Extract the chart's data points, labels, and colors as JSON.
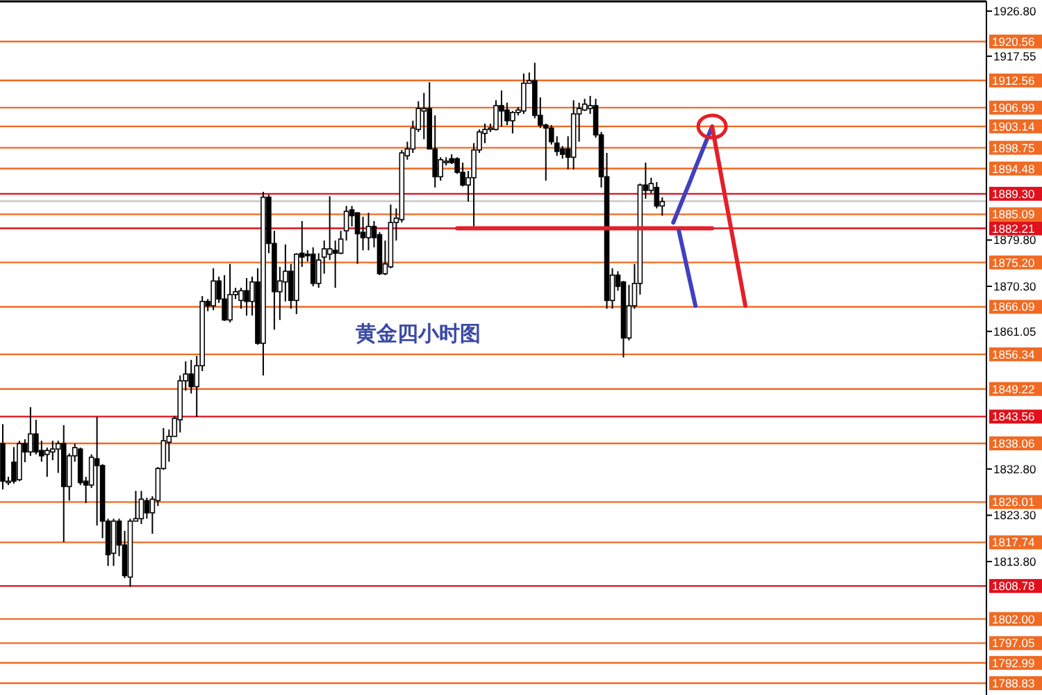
{
  "chart_data": {
    "type": "candlestick",
    "title": "黄金四小时图",
    "tick_labels": "y",
    "ylim": [
      1786.4,
      1928.8
    ],
    "yticks": [
      {
        "value": 1926.8,
        "label": "1926.80"
      },
      {
        "value": 1917.55,
        "label": "1917.55"
      },
      {
        "value": 1879.8,
        "label": "1879.80"
      },
      {
        "value": 1870.3,
        "label": "1870.30"
      },
      {
        "value": 1861.05,
        "label": "1861.05"
      },
      {
        "value": 1832.8,
        "label": "1832.80"
      },
      {
        "value": 1823.3,
        "label": "1823.30"
      },
      {
        "value": 1813.8,
        "label": "1813.80"
      }
    ],
    "categories": [
      null,
      null,
      null,
      null,
      null,
      null,
      null,
      null,
      null,
      null,
      null,
      null,
      null,
      null,
      null,
      null,
      null,
      null,
      null,
      null,
      null,
      null,
      null,
      null,
      null,
      null,
      null,
      null,
      null,
      null,
      null,
      null,
      null,
      null,
      null,
      null,
      null,
      null,
      null,
      null,
      null,
      null,
      null,
      null,
      null,
      null,
      null,
      null,
      null,
      null,
      null,
      null,
      null,
      null,
      null,
      null,
      null,
      null,
      null,
      null,
      null,
      null,
      null,
      null,
      null,
      null,
      null,
      null,
      null,
      null,
      null,
      null,
      null,
      null,
      null,
      null,
      null,
      null,
      null,
      null,
      null,
      null,
      null,
      null,
      null,
      null,
      null,
      null,
      null,
      null,
      null,
      null,
      null,
      null,
      null,
      null,
      null,
      null,
      null,
      null,
      null,
      null,
      null,
      null,
      null,
      null,
      null,
      null,
      null,
      null,
      null,
      null,
      null,
      null,
      null,
      null,
      null,
      null,
      null,
      null,
      null,
      null,
      null,
      null,
      null,
      null,
      null,
      null,
      null,
      null,
      null,
      null,
      null,
      null,
      null,
      null,
      null,
      null,
      null,
      null,
      null,
      null,
      null,
      null,
      null,
      null,
      null,
      null,
      null,
      null,
      null,
      null,
      null,
      null,
      null,
      null,
      null,
      null,
      null,
      null,
      null,
      null,
      null,
      null,
      null,
      null,
      null,
      null,
      null,
      null,
      null,
      null,
      null,
      null,
      null,
      null,
      null,
      null
    ],
    "ohlc": [
      [
        1838.0,
        1842.0,
        1828.6,
        1830.3
      ],
      [
        1830.0,
        1831.2,
        1829.5,
        1830.3
      ],
      [
        1834.2,
        1837.3,
        1829.8,
        1830.3
      ],
      [
        1830.6,
        1838.6,
        1830.3,
        1838.0
      ],
      [
        1838.0,
        1838.9,
        1834.2,
        1836.3
      ],
      [
        1836.3,
        1845.5,
        1835.5,
        1840.0
      ],
      [
        1840.0,
        1842.9,
        1835.8,
        1836.3
      ],
      [
        1836.6,
        1838.6,
        1834.3,
        1835.5
      ],
      [
        1835.8,
        1837.2,
        1831.2,
        1836.6
      ],
      [
        1836.3,
        1838.6,
        1834.6,
        1836.9
      ],
      [
        1836.9,
        1838.6,
        1832.0,
        1838.0
      ],
      [
        1838.0,
        1841.8,
        1817.8,
        1829.2
      ],
      [
        1829.2,
        1836.0,
        1826.3,
        1835.5
      ],
      [
        1835.5,
        1838.0,
        1834.3,
        1837.2
      ],
      [
        1836.9,
        1837.2,
        1829.5,
        1830.0
      ],
      [
        1830.3,
        1831.2,
        1825.8,
        1829.5
      ],
      [
        1829.5,
        1835.8,
        1828.9,
        1835.2
      ],
      [
        1834.9,
        1843.5,
        1821.2,
        1833.5
      ],
      [
        1833.5,
        1833.8,
        1818.6,
        1822.1
      ],
      [
        1822.1,
        1822.6,
        1812.9,
        1815.2
      ],
      [
        1815.5,
        1822.6,
        1812.9,
        1822.1
      ],
      [
        1822.1,
        1822.6,
        1814.9,
        1817.2
      ],
      [
        1817.2,
        1820.1,
        1810.4,
        1810.9
      ],
      [
        1810.6,
        1822.6,
        1808.6,
        1822.1
      ],
      [
        1822.1,
        1828.3,
        1822.1,
        1822.6
      ],
      [
        1822.6,
        1828.3,
        1821.5,
        1826.6
      ],
      [
        1826.3,
        1826.9,
        1822.6,
        1823.8
      ],
      [
        1823.8,
        1827.2,
        1819.5,
        1826.6
      ],
      [
        1826.3,
        1833.2,
        1825.2,
        1832.9
      ],
      [
        1832.9,
        1841.2,
        1832.6,
        1838.6
      ],
      [
        1838.3,
        1840.9,
        1834.3,
        1839.5
      ],
      [
        1839.5,
        1843.7,
        1839.5,
        1843.2
      ],
      [
        1842.9,
        1852.0,
        1840.3,
        1850.9
      ],
      [
        1850.9,
        1854.9,
        1848.9,
        1852.3
      ],
      [
        1852.3,
        1855.2,
        1848.3,
        1849.7
      ],
      [
        1849.7,
        1856.0,
        1843.5,
        1854.0
      ],
      [
        1854.0,
        1868.3,
        1852.9,
        1867.2
      ],
      [
        1867.2,
        1867.7,
        1865.2,
        1866.3
      ],
      [
        1866.3,
        1874.0,
        1865.4,
        1871.4
      ],
      [
        1871.4,
        1872.3,
        1866.9,
        1867.7
      ],
      [
        1867.7,
        1872.6,
        1863.2,
        1863.4
      ],
      [
        1863.4,
        1874.9,
        1862.9,
        1868.6
      ],
      [
        1868.6,
        1870.0,
        1867.7,
        1869.2
      ],
      [
        1867.4,
        1870.0,
        1865.7,
        1869.4
      ],
      [
        1869.4,
        1872.0,
        1864.3,
        1867.2
      ],
      [
        1867.2,
        1872.3,
        1864.3,
        1871.2
      ],
      [
        1871.2,
        1874.0,
        1858.3,
        1858.6
      ],
      [
        1858.6,
        1889.7,
        1852.0,
        1888.6
      ],
      [
        1888.6,
        1889.1,
        1877.1,
        1879.1
      ],
      [
        1879.1,
        1881.7,
        1861.4,
        1869.2
      ],
      [
        1869.2,
        1874.3,
        1863.4,
        1871.4
      ],
      [
        1871.2,
        1878.9,
        1867.2,
        1873.4
      ],
      [
        1873.4,
        1874.9,
        1865.7,
        1867.4
      ],
      [
        1867.4,
        1877.1,
        1864.6,
        1876.9
      ],
      [
        1877.1,
        1883.7,
        1874.3,
        1876.3
      ],
      [
        1876.9,
        1877.7,
        1875.4,
        1876.6
      ],
      [
        1876.9,
        1878.3,
        1870.3,
        1870.9
      ],
      [
        1870.9,
        1877.1,
        1870.0,
        1875.7
      ],
      [
        1876.3,
        1879.7,
        1872.9,
        1878.0
      ],
      [
        1876.9,
        1888.8,
        1875.7,
        1878.0
      ],
      [
        1877.7,
        1879.7,
        1870.0,
        1877.1
      ],
      [
        1877.1,
        1881.7,
        1876.9,
        1880.0
      ],
      [
        1881.7,
        1886.8,
        1879.7,
        1885.7
      ],
      [
        1886.0,
        1886.8,
        1882.6,
        1884.8
      ],
      [
        1885.4,
        1885.4,
        1874.9,
        1881.1
      ],
      [
        1881.4,
        1884.6,
        1877.7,
        1880.3
      ],
      [
        1880.3,
        1885.4,
        1877.7,
        1882.6
      ],
      [
        1882.6,
        1883.7,
        1878.3,
        1880.3
      ],
      [
        1880.9,
        1881.4,
        1872.6,
        1872.9
      ],
      [
        1872.9,
        1879.7,
        1872.6,
        1874.9
      ],
      [
        1874.3,
        1887.1,
        1874.0,
        1883.4
      ],
      [
        1883.4,
        1886.3,
        1879.7,
        1884.3
      ],
      [
        1884.0,
        1898.3,
        1883.4,
        1897.7
      ],
      [
        1897.1,
        1900.0,
        1896.3,
        1898.5
      ],
      [
        1898.5,
        1904.3,
        1897.7,
        1902.8
      ],
      [
        1902.5,
        1908.3,
        1902.0,
        1906.8
      ],
      [
        1906.3,
        1910.0,
        1900.5,
        1906.8
      ],
      [
        1906.8,
        1912.2,
        1898.5,
        1898.5
      ],
      [
        1898.5,
        1905.4,
        1890.6,
        1892.8
      ],
      [
        1892.8,
        1896.8,
        1892.0,
        1896.3
      ],
      [
        1895.7,
        1896.8,
        1895.1,
        1896.0
      ],
      [
        1896.5,
        1897.4,
        1895.4,
        1895.7
      ],
      [
        1896.5,
        1896.8,
        1893.4,
        1893.7
      ],
      [
        1893.7,
        1895.7,
        1890.8,
        1891.1
      ],
      [
        1891.1,
        1894.0,
        1887.7,
        1892.6
      ],
      [
        1892.6,
        1899.7,
        1882.6,
        1898.3
      ],
      [
        1898.3,
        1902.5,
        1897.7,
        1902.0
      ],
      [
        1901.7,
        1903.7,
        1899.7,
        1902.5
      ],
      [
        1902.5,
        1903.7,
        1902.0,
        1902.8
      ],
      [
        1902.5,
        1908.5,
        1902.3,
        1907.4
      ],
      [
        1907.4,
        1910.5,
        1903.1,
        1906.3
      ],
      [
        1906.5,
        1908.0,
        1903.4,
        1904.3
      ],
      [
        1904.3,
        1906.3,
        1901.7,
        1906.0
      ],
      [
        1906.0,
        1907.1,
        1905.4,
        1906.5
      ],
      [
        1906.3,
        1914.0,
        1905.7,
        1912.0
      ],
      [
        1912.0,
        1914.2,
        1912.0,
        1912.5
      ],
      [
        1912.5,
        1916.2,
        1904.8,
        1905.4
      ],
      [
        1905.4,
        1909.1,
        1902.8,
        1903.4
      ],
      [
        1903.4,
        1903.7,
        1892.0,
        1902.8
      ],
      [
        1902.8,
        1903.4,
        1899.4,
        1900.0
      ],
      [
        1899.7,
        1901.1,
        1897.1,
        1898.0
      ],
      [
        1898.5,
        1899.1,
        1896.5,
        1897.4
      ],
      [
        1898.5,
        1901.1,
        1894.3,
        1896.8
      ],
      [
        1896.8,
        1908.5,
        1894.3,
        1905.7
      ],
      [
        1905.7,
        1908.0,
        1900.0,
        1906.8
      ],
      [
        1906.5,
        1908.8,
        1906.3,
        1907.7
      ],
      [
        1906.8,
        1909.4,
        1905.7,
        1907.4
      ],
      [
        1907.4,
        1908.8,
        1900.8,
        1901.4
      ],
      [
        1901.4,
        1902.0,
        1890.6,
        1892.8
      ],
      [
        1892.8,
        1897.7,
        1865.7,
        1867.4
      ],
      [
        1867.4,
        1874.0,
        1865.7,
        1872.6
      ],
      [
        1872.6,
        1873.4,
        1869.4,
        1870.3
      ],
      [
        1871.2,
        1871.4,
        1855.7,
        1859.7
      ],
      [
        1859.7,
        1870.6,
        1859.2,
        1866.3
      ],
      [
        1866.3,
        1874.9,
        1865.7,
        1870.9
      ],
      [
        1870.9,
        1891.4,
        1868.6,
        1891.1
      ],
      [
        1891.1,
        1895.7,
        1888.3,
        1890.0
      ],
      [
        1890.0,
        1892.6,
        1889.4,
        1891.4
      ],
      [
        1890.6,
        1891.7,
        1886.3,
        1886.8
      ],
      [
        1886.8,
        1888.6,
        1884.8,
        1887.7
      ],
      null,
      null,
      null,
      null,
      null,
      null,
      null,
      null,
      null,
      null,
      null,
      null,
      null,
      null,
      null,
      null,
      null,
      null,
      null,
      null,
      null,
      null,
      null,
      null,
      null,
      null,
      null,
      null,
      null,
      null,
      null,
      null,
      null,
      null,
      null,
      null,
      null,
      null,
      null,
      null,
      null,
      null,
      null,
      null,
      null,
      null,
      null,
      null,
      null,
      null,
      null,
      null,
      null,
      null,
      null,
      null,
      null,
      null
    ],
    "ref_lines": [
      {
        "axis": "y",
        "value": 1920.56,
        "label": "1920.56",
        "color": "#f06a23"
      },
      {
        "axis": "y",
        "value": 1912.56,
        "label": "1912.56",
        "color": "#f06a23"
      },
      {
        "axis": "y",
        "value": 1906.99,
        "label": "1906.99",
        "color": "#f06a23"
      },
      {
        "axis": "y",
        "value": 1903.14,
        "label": "1903.14",
        "color": "#f06a23"
      },
      {
        "axis": "y",
        "value": 1898.75,
        "label": "1898.75",
        "color": "#f06a23"
      },
      {
        "axis": "y",
        "value": 1894.48,
        "label": "1894.48",
        "color": "#f06a23"
      },
      {
        "axis": "y",
        "value": 1889.3,
        "label": "1889.30",
        "color": "#e0101c"
      },
      {
        "axis": "y",
        "value": 1887.78,
        "label": null,
        "color": "#c8c8c8"
      },
      {
        "axis": "y",
        "value": 1885.09,
        "label": "1885.09",
        "color": "#f06a23"
      },
      {
        "axis": "y",
        "value": 1882.21,
        "label": "1882.21",
        "color": "#e0101c"
      },
      {
        "axis": "y",
        "value": 1875.2,
        "label": "1875.20",
        "color": "#f06a23"
      },
      {
        "axis": "y",
        "value": 1866.09,
        "label": "1866.09",
        "color": "#f06a23"
      },
      {
        "axis": "y",
        "value": 1856.34,
        "label": "1856.34",
        "color": "#f06a23"
      },
      {
        "axis": "y",
        "value": 1849.22,
        "label": "1849.22",
        "color": "#f06a23"
      },
      {
        "axis": "y",
        "value": 1843.56,
        "label": "1843.56",
        "color": "#e0101c"
      },
      {
        "axis": "y",
        "value": 1838.06,
        "label": "1838.06",
        "color": "#f06a23"
      },
      {
        "axis": "y",
        "value": 1826.01,
        "label": "1826.01",
        "color": "#f06a23"
      },
      {
        "axis": "y",
        "value": 1817.74,
        "label": "1817.74",
        "color": "#f06a23"
      },
      {
        "axis": "y",
        "value": 1808.78,
        "label": "1808.78",
        "color": "#e0101c"
      },
      {
        "axis": "y",
        "value": 1802.0,
        "label": "1802.00",
        "color": "#f06a23"
      },
      {
        "axis": "y",
        "value": 1797.05,
        "label": "1797.05",
        "color": "#f06a23"
      },
      {
        "axis": "y",
        "value": 1792.99,
        "label": "1792.99",
        "color": "#f06a23"
      },
      {
        "axis": "y",
        "value": 1788.83,
        "label": "1788.83",
        "color": "#f06a23"
      }
    ],
    "series": [
      {
        "type": "line",
        "color": "#e3202a",
        "values": [
          null,
          null,
          null,
          null,
          null,
          null,
          null,
          null,
          null,
          null,
          null,
          null,
          null,
          null,
          null,
          null,
          null,
          null,
          null,
          null,
          null,
          null,
          null,
          null,
          null,
          null,
          null,
          null,
          null,
          null,
          null,
          null,
          null,
          null,
          null,
          null,
          null,
          null,
          null,
          null,
          null,
          null,
          null,
          null,
          null,
          null,
          null,
          null,
          null,
          null,
          null,
          null,
          null,
          null,
          null,
          null,
          null,
          null,
          null,
          null,
          null,
          null,
          null,
          null,
          null,
          null,
          null,
          null,
          null,
          null,
          null,
          null,
          null,
          null,
          null,
          null,
          null,
          null,
          null,
          null,
          null,
          null,
          1882.2,
          1882.2,
          1882.2,
          1882.2,
          1882.2,
          1882.2,
          1882.2,
          1882.2,
          1882.2,
          1882.2,
          1882.2,
          1882.2,
          1882.2,
          1882.2,
          1882.2,
          1882.2,
          1882.2,
          1882.2,
          1882.2,
          1882.2,
          1882.2,
          1882.2,
          1882.2,
          1882.2,
          1882.2,
          1882.2,
          1882.2,
          1882.2,
          1882.2,
          1882.2,
          1882.2,
          1882.2,
          1882.2,
          1882.2,
          1882.2,
          1882.2,
          1882.2,
          1882.2,
          1882.2,
          1882.2,
          1882.2,
          1882.2,
          1882.2,
          1882.2,
          1882.2,
          1882.2,
          1882.2,
          null,
          null,
          null,
          null,
          null,
          null,
          null,
          null,
          null,
          null,
          null,
          null,
          null,
          null,
          null,
          null,
          null,
          null,
          null,
          null,
          null,
          null,
          null,
          null,
          null,
          null,
          null,
          null,
          null,
          null,
          null,
          null,
          null,
          null,
          null,
          null,
          null,
          null,
          null,
          null,
          null,
          null,
          null,
          null,
          null,
          null,
          null,
          null,
          null
        ]
      },
      {
        "type": "line",
        "color": "#4040c0",
        "values": [
          null,
          null,
          null,
          null,
          null,
          null,
          null,
          null,
          null,
          null,
          null,
          null,
          null,
          null,
          null,
          null,
          null,
          null,
          null,
          null,
          null,
          null,
          null,
          null,
          null,
          null,
          null,
          null,
          null,
          null,
          null,
          null,
          null,
          null,
          null,
          null,
          null,
          null,
          null,
          null,
          null,
          null,
          null,
          null,
          null,
          null,
          null,
          null,
          null,
          null,
          null,
          null,
          null,
          null,
          null,
          null,
          null,
          null,
          null,
          null,
          null,
          null,
          null,
          null,
          null,
          null,
          null,
          null,
          null,
          null,
          null,
          null,
          null,
          null,
          null,
          null,
          null,
          null,
          null,
          null,
          null,
          null,
          null,
          null,
          null,
          null,
          null,
          null,
          null,
          null,
          null,
          null,
          null,
          null,
          null,
          null,
          null,
          null,
          null,
          null,
          null,
          null,
          null,
          null,
          null,
          null,
          null,
          null,
          null,
          null,
          null,
          null,
          null,
          null,
          null,
          null,
          null,
          null,
          null,
          null,
          null,
          1883.4,
          1886.2,
          1889.0,
          1891.8,
          1894.7,
          1897.5,
          1900.3,
          1903.1,
          null,
          null,
          null,
          null,
          null,
          null,
          null,
          null,
          null,
          null,
          null,
          null,
          null,
          null,
          null,
          null,
          null,
          null,
          null,
          null,
          null,
          null,
          null,
          null,
          null,
          null,
          null,
          null,
          null,
          null,
          null,
          null,
          null,
          null,
          null,
          null,
          null,
          null,
          null,
          null,
          null,
          null,
          null,
          null,
          null,
          null,
          null,
          null,
          null
        ]
      },
      {
        "type": "line",
        "color": "#4040c0",
        "values": [
          null,
          null,
          null,
          null,
          null,
          null,
          null,
          null,
          null,
          null,
          null,
          null,
          null,
          null,
          null,
          null,
          null,
          null,
          null,
          null,
          null,
          null,
          null,
          null,
          null,
          null,
          null,
          null,
          null,
          null,
          null,
          null,
          null,
          null,
          null,
          null,
          null,
          null,
          null,
          null,
          null,
          null,
          null,
          null,
          null,
          null,
          null,
          null,
          null,
          null,
          null,
          null,
          null,
          null,
          null,
          null,
          null,
          null,
          null,
          null,
          null,
          null,
          null,
          null,
          null,
          null,
          null,
          null,
          null,
          null,
          null,
          null,
          null,
          null,
          null,
          null,
          null,
          null,
          null,
          null,
          null,
          null,
          null,
          null,
          null,
          null,
          null,
          null,
          null,
          null,
          null,
          null,
          null,
          null,
          null,
          null,
          null,
          null,
          null,
          null,
          null,
          null,
          null,
          null,
          null,
          null,
          null,
          null,
          null,
          null,
          null,
          null,
          null,
          null,
          null,
          null,
          null,
          null,
          null,
          null,
          null,
          null,
          1881.7,
          1876.6,
          1871.4,
          1866.3,
          null,
          null,
          null,
          null,
          null,
          null,
          null,
          null,
          null,
          null,
          null,
          null,
          null,
          null,
          null,
          null,
          null,
          null,
          null,
          null,
          null,
          null,
          null,
          null,
          null,
          null,
          null,
          null,
          null,
          null,
          null,
          null,
          null,
          null,
          null,
          null,
          null,
          null,
          null,
          null,
          null,
          null,
          null,
          null,
          null,
          null,
          null,
          null,
          null,
          null,
          null,
          null
        ]
      },
      {
        "type": "line",
        "color": "#e3202a",
        "values": [
          null,
          null,
          null,
          null,
          null,
          null,
          null,
          null,
          null,
          null,
          null,
          null,
          null,
          null,
          null,
          null,
          null,
          null,
          null,
          null,
          null,
          null,
          null,
          null,
          null,
          null,
          null,
          null,
          null,
          null,
          null,
          null,
          null,
          null,
          null,
          null,
          null,
          null,
          null,
          null,
          null,
          null,
          null,
          null,
          null,
          null,
          null,
          null,
          null,
          null,
          null,
          null,
          null,
          null,
          null,
          null,
          null,
          null,
          null,
          null,
          null,
          null,
          null,
          null,
          null,
          null,
          null,
          null,
          null,
          null,
          null,
          null,
          null,
          null,
          null,
          null,
          null,
          null,
          null,
          null,
          null,
          null,
          null,
          null,
          null,
          null,
          null,
          null,
          null,
          null,
          null,
          null,
          null,
          null,
          null,
          null,
          null,
          null,
          null,
          null,
          null,
          null,
          null,
          null,
          null,
          null,
          null,
          null,
          null,
          null,
          null,
          null,
          null,
          null,
          null,
          null,
          null,
          null,
          null,
          null,
          null,
          null,
          null,
          null,
          null,
          null,
          null,
          null,
          1903.1,
          1897.0,
          1890.8,
          1884.7,
          1878.6,
          1872.4,
          1866.3,
          null,
          null,
          null,
          null,
          null,
          null,
          null,
          null,
          null,
          null,
          null,
          null,
          null,
          null,
          null,
          null,
          null,
          null,
          null,
          null,
          null,
          null,
          null,
          null,
          null,
          null,
          null,
          null,
          null,
          null,
          null,
          null,
          null,
          null,
          null,
          null,
          null,
          null,
          null,
          null,
          null,
          null,
          null
        ]
      },
      {
        "type": "scatter",
        "marker": "circle",
        "color": "#e3202a",
        "values": [
          null,
          null,
          null,
          null,
          null,
          null,
          null,
          null,
          null,
          null,
          null,
          null,
          null,
          null,
          null,
          null,
          null,
          null,
          null,
          null,
          null,
          null,
          null,
          null,
          null,
          null,
          null,
          null,
          null,
          null,
          null,
          null,
          null,
          null,
          null,
          null,
          null,
          null,
          null,
          null,
          null,
          null,
          null,
          null,
          null,
          null,
          null,
          null,
          null,
          null,
          null,
          null,
          null,
          null,
          null,
          null,
          null,
          null,
          null,
          null,
          null,
          null,
          null,
          null,
          null,
          null,
          null,
          null,
          null,
          null,
          null,
          null,
          null,
          null,
          null,
          null,
          null,
          null,
          null,
          null,
          null,
          null,
          null,
          null,
          null,
          null,
          null,
          null,
          null,
          null,
          null,
          null,
          null,
          null,
          null,
          null,
          null,
          null,
          null,
          null,
          null,
          null,
          null,
          null,
          null,
          null,
          null,
          null,
          null,
          null,
          null,
          null,
          null,
          null,
          null,
          null,
          null,
          null,
          null,
          null,
          null,
          null,
          null,
          null,
          null,
          null,
          null,
          null,
          1903.1,
          null,
          null,
          null,
          null,
          null,
          null,
          null,
          null,
          null,
          null,
          null,
          null,
          null,
          null,
          null,
          null,
          null,
          null,
          null,
          null,
          null,
          null,
          null,
          null,
          null,
          null,
          null,
          null,
          null,
          null,
          null,
          null,
          null,
          null,
          null,
          null,
          null,
          null,
          null,
          null,
          null,
          null,
          null,
          null,
          null,
          null,
          null,
          null,
          null
        ]
      }
    ]
  }
}
